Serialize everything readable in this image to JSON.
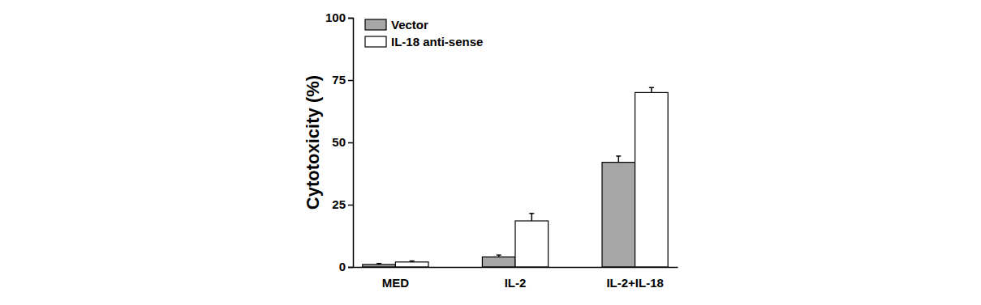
{
  "chart_data": {
    "type": "bar",
    "categories": [
      "MED",
      "IL-2",
      "IL-2+IL-18"
    ],
    "y_label": "Cytotoxicity (%)",
    "series": [
      {
        "name": "Vector",
        "color": "#a6a6a6",
        "values": [
          1,
          4,
          42
        ],
        "errors": [
          0.4,
          0.8,
          2.5
        ]
      },
      {
        "name": "IL-18 anti-sense",
        "color": "#ffffff",
        "values": [
          2,
          18.5,
          70
        ],
        "errors": [
          0.4,
          3,
          2
        ]
      }
    ],
    "ylim": [
      0,
      100
    ],
    "yticks": [
      0,
      25,
      50,
      75,
      100
    ],
    "legend": "top-left"
  }
}
